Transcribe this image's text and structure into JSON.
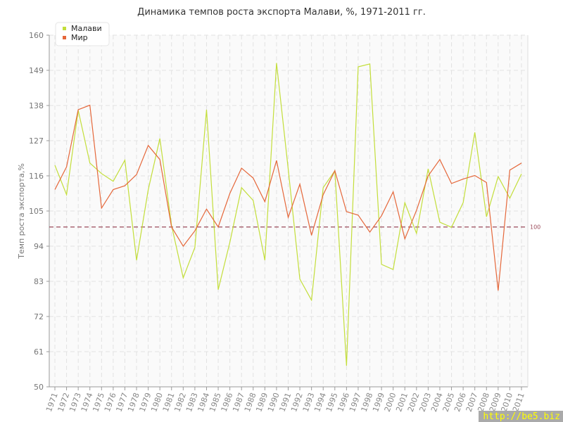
{
  "chart_data": {
    "type": "line",
    "title": "Динамика темпов роста экспорта Малави, %, 1971-2011 гг.",
    "ylabel": "Темп роста экспорта,%",
    "xlabel": "",
    "ylim": [
      50,
      160
    ],
    "yticks": [
      50,
      61,
      72,
      83,
      94,
      105,
      116,
      127,
      138,
      149,
      160
    ],
    "grid": true,
    "legend_position": "top-left",
    "reference_line": {
      "value": 100,
      "label": "100",
      "color": "#9b4a5a"
    },
    "x": [
      "1971",
      "1972",
      "1973",
      "1974",
      "1975",
      "1976",
      "1977",
      "1978",
      "1979",
      "1980",
      "1981",
      "1982",
      "1983",
      "1984",
      "1985",
      "1986",
      "1987",
      "1988",
      "1989",
      "1990",
      "1991",
      "1992",
      "1993",
      "1994",
      "1995",
      "1996",
      "1997",
      "1998",
      "1999",
      "2000",
      "2001",
      "2002",
      "2003",
      "2004",
      "2005",
      "2006",
      "2007",
      "2008",
      "2009",
      "2010",
      "2011"
    ],
    "series": [
      {
        "name": "Малави",
        "color": "#c3de3a",
        "values": [
          119.3,
          110.1,
          136.5,
          120.0,
          116.7,
          114.3,
          120.9,
          89.6,
          111.6,
          127.7,
          100.5,
          84.1,
          93.6,
          136.7,
          80.4,
          95.2,
          112.3,
          108.3,
          89.6,
          151.3,
          118.2,
          83.7,
          77.1,
          112.3,
          117.6,
          56.6,
          150.1,
          151.0,
          88.3,
          86.7,
          107.6,
          98.0,
          118.2,
          101.5,
          99.9,
          107.6,
          129.6,
          103.2,
          115.8,
          109.0,
          116.6
        ]
      },
      {
        "name": "Мир",
        "color": "#e5673a",
        "values": [
          111.7,
          118.8,
          136.7,
          138.1,
          105.9,
          111.7,
          112.9,
          116.4,
          125.5,
          121.1,
          100.0,
          94.0,
          98.8,
          105.6,
          100.0,
          110.5,
          118.4,
          115.3,
          107.9,
          120.8,
          103.0,
          113.4,
          97.4,
          110.1,
          117.6,
          104.8,
          103.7,
          98.4,
          103.5,
          111.0,
          96.3,
          105.2,
          116.0,
          121.1,
          113.6,
          115.0,
          116.1,
          113.9,
          80.1,
          117.8,
          120.0
        ]
      }
    ]
  },
  "watermark": "http://be5.biz"
}
